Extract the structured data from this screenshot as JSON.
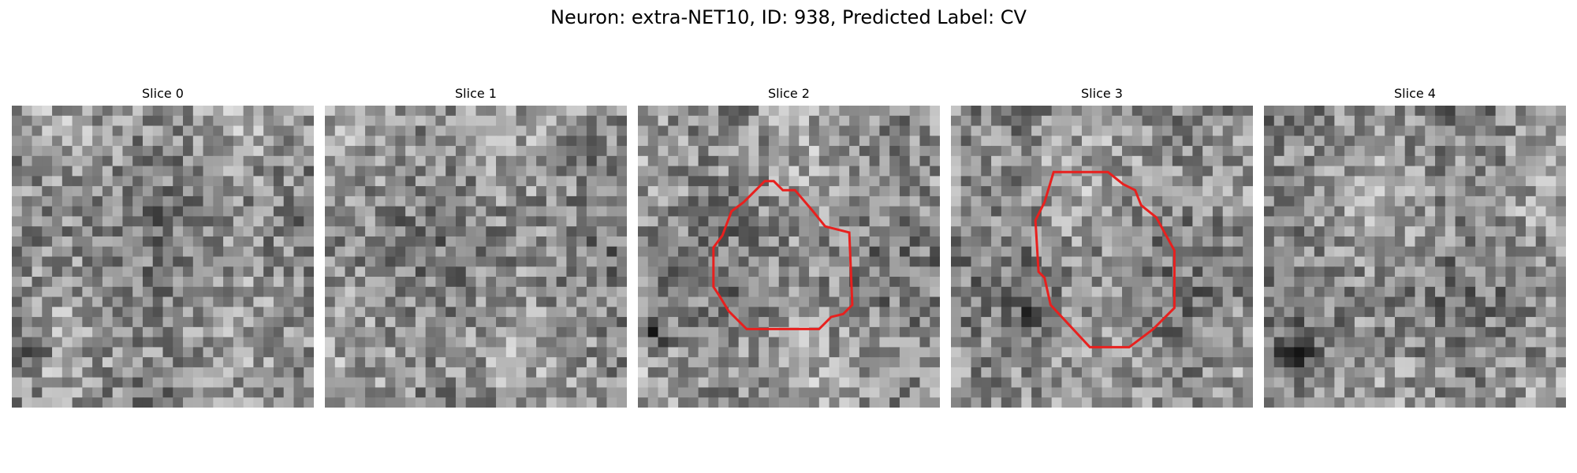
{
  "figure": {
    "title": "Neuron: extra-NET10, ID: 938, Predicted Label: CV"
  },
  "panels": [
    {
      "title": "Slice 0",
      "has_contour": false,
      "contour_color": "#e8201e",
      "dark_blob": [
        0.05,
        0.8,
        0.1
      ]
    },
    {
      "title": "Slice 1",
      "has_contour": false,
      "contour_color": "#e8201e",
      "dark_blob": [
        0.8,
        0.15,
        0.1
      ]
    },
    {
      "title": "Slice 2",
      "has_contour": true,
      "contour_color": "#e8201e",
      "dark_blob": [
        0.05,
        0.75,
        0.08
      ]
    },
    {
      "title": "Slice 3",
      "has_contour": true,
      "contour_color": "#e8201e",
      "dark_blob": [
        0.25,
        0.72,
        0.06
      ]
    },
    {
      "title": "Slice 4",
      "has_contour": false,
      "contour_color": "#e8201e",
      "dark_blob": [
        0.12,
        0.8,
        0.1
      ]
    }
  ],
  "contours": {
    "Slice 2": [
      [
        0.42,
        0.25
      ],
      [
        0.45,
        0.25
      ],
      [
        0.48,
        0.28
      ],
      [
        0.52,
        0.28
      ],
      [
        0.58,
        0.35
      ],
      [
        0.62,
        0.4
      ],
      [
        0.7,
        0.42
      ],
      [
        0.71,
        0.66
      ],
      [
        0.68,
        0.69
      ],
      [
        0.64,
        0.7
      ],
      [
        0.6,
        0.74
      ],
      [
        0.36,
        0.74
      ],
      [
        0.3,
        0.68
      ],
      [
        0.27,
        0.63
      ],
      [
        0.25,
        0.6
      ],
      [
        0.25,
        0.47
      ],
      [
        0.28,
        0.43
      ],
      [
        0.31,
        0.35
      ],
      [
        0.35,
        0.32
      ]
    ],
    "Slice 3": [
      [
        0.34,
        0.22
      ],
      [
        0.52,
        0.22
      ],
      [
        0.57,
        0.26
      ],
      [
        0.61,
        0.28
      ],
      [
        0.63,
        0.33
      ],
      [
        0.68,
        0.37
      ],
      [
        0.74,
        0.48
      ],
      [
        0.74,
        0.67
      ],
      [
        0.67,
        0.74
      ],
      [
        0.59,
        0.8
      ],
      [
        0.46,
        0.8
      ],
      [
        0.33,
        0.66
      ],
      [
        0.31,
        0.57
      ],
      [
        0.29,
        0.55
      ],
      [
        0.28,
        0.38
      ],
      [
        0.31,
        0.32
      ]
    ]
  }
}
